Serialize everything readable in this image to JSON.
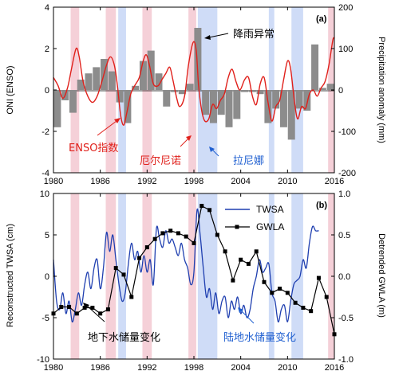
{
  "colors": {
    "el_nino_band": "#f5d0d8",
    "la_nina_band": "#cfdcf7",
    "oni": "#e0201b",
    "precip_bar": "#8c8c8c",
    "twsa": "#1f3fb0",
    "gwla": "#000000",
    "ann_red": "#e0201b",
    "ann_blue": "#1f5fd0"
  },
  "chart_data": [
    {
      "type": "bar",
      "panel_label": "(a)",
      "x_range": [
        1980,
        2016
      ],
      "x_ticks": [
        "1980",
        "1986",
        "1992",
        "1998",
        "2004",
        "2010",
        "2016"
      ],
      "ylabel": "ONI (ENSO)",
      "ylim": [
        -4,
        4
      ],
      "y_ticks": [
        "-4",
        "-2",
        "0",
        "2",
        "4"
      ],
      "y2label": "Precipitation anomaly (mm)",
      "y2lim": [
        -200,
        200
      ],
      "y2_ticks": [
        "-200",
        "-100",
        "0",
        "100",
        "200"
      ],
      "el_nino_periods": [
        [
          1982.2,
          1983.3
        ],
        [
          1986.7,
          1988.0
        ],
        [
          1991.4,
          1992.6
        ],
        [
          1997.3,
          1998.3
        ],
        [
          2015.2,
          2016.2
        ]
      ],
      "la_nina_periods": [
        [
          1988.3,
          1989.3
        ],
        [
          1998.5,
          2001.0
        ],
        [
          2007.6,
          2008.3
        ],
        [
          2010.5,
          2012.0
        ]
      ],
      "series": [
        {
          "kind": "bar",
          "axis": "right",
          "x": [
            1980,
            1981,
            1982,
            1983,
            1984,
            1985,
            1986,
            1987,
            1988,
            1989,
            1990,
            1991,
            1992,
            1993,
            1994,
            1995,
            1996,
            1997,
            1998,
            1999,
            2000,
            2001,
            2002,
            2003,
            2004,
            2005,
            2006,
            2007,
            2008,
            2009,
            2010,
            2011,
            2012,
            2013,
            2014,
            2015
          ],
          "values": [
            -90,
            -25,
            -55,
            25,
            40,
            55,
            75,
            45,
            -30,
            -80,
            10,
            70,
            95,
            40,
            -40,
            -5,
            -10,
            15,
            150,
            -60,
            -80,
            -60,
            -90,
            -70,
            -5,
            -5,
            -10,
            -80,
            -45,
            -90,
            -120,
            -45,
            -50,
            110,
            5,
            15
          ]
        },
        {
          "kind": "line",
          "axis": "left",
          "x": [
            1980.0,
            1980.6,
            1981.2,
            1981.8,
            1982.3,
            1982.9,
            1983.3,
            1983.8,
            1984.4,
            1985.0,
            1985.6,
            1986.2,
            1986.8,
            1987.3,
            1987.8,
            1988.2,
            1988.6,
            1989.0,
            1989.4,
            1989.9,
            1990.4,
            1991.0,
            1991.5,
            1991.9,
            1992.3,
            1992.8,
            1993.4,
            1993.9,
            1994.4,
            1994.9,
            1995.3,
            1995.8,
            1996.2,
            1996.8,
            1997.3,
            1997.9,
            1998.3,
            1998.6,
            1999.0,
            1999.4,
            1999.9,
            2000.4,
            2000.9,
            2001.4,
            2001.9,
            2002.4,
            2002.9,
            2003.4,
            2003.9,
            2004.5,
            2005.0,
            2005.5,
            2006.0,
            2006.5,
            2007.0,
            2007.5,
            2008.0,
            2008.5,
            2009.0,
            2009.5,
            2010.0,
            2010.4,
            2010.9,
            2011.3,
            2011.8,
            2012.3,
            2012.8,
            2013.3,
            2013.8,
            2014.3,
            2014.8,
            2015.3,
            2015.8,
            2016.0
          ],
          "values": [
            0.6,
            0.2,
            -0.4,
            0.1,
            1.0,
            2.0,
            1.6,
            0.4,
            -0.3,
            -0.6,
            -0.3,
            0.4,
            1.2,
            1.6,
            1.2,
            0.2,
            -1.2,
            -1.7,
            -1.1,
            -0.2,
            0.2,
            0.6,
            1.4,
            1.7,
            1.2,
            0.3,
            0.2,
            0.5,
            0.8,
            1.1,
            0.5,
            -0.4,
            -0.8,
            -0.3,
            1.2,
            2.3,
            1.9,
            0.2,
            -1.0,
            -1.5,
            -1.4,
            -0.7,
            -0.9,
            -0.5,
            -0.2,
            0.6,
            1.0,
            0.4,
            0.0,
            0.5,
            0.6,
            -0.3,
            -0.7,
            0.3,
            0.6,
            -0.6,
            -1.5,
            -0.8,
            -0.5,
            0.5,
            1.4,
            1.0,
            -0.6,
            -1.4,
            -0.8,
            -0.9,
            -0.2,
            0.0,
            -0.3,
            0.1,
            0.4,
            1.2,
            2.4,
            2.5
          ]
        }
      ],
      "annotations": {
        "precip": "降雨异常",
        "enso": "ENSO指数",
        "el_nino": "厄尔尼诺",
        "la_nina": "拉尼娜"
      }
    },
    {
      "type": "line",
      "panel_label": "(b)",
      "x_range": [
        1980,
        2016
      ],
      "x_ticks": [
        "1980",
        "1986",
        "1992",
        "1998",
        "2004",
        "2010",
        "2016"
      ],
      "ylabel": "Reconstructed TWSA (cm)",
      "ylim": [
        -10,
        10
      ],
      "y_ticks": [
        "-10",
        "-5",
        "0",
        "5",
        "10"
      ],
      "y2label": "Detrended GWLA (m)",
      "y2lim": [
        -1.0,
        1.0
      ],
      "y2_ticks": [
        "-1.0",
        "-0.5",
        "0.0",
        "0.5",
        "1.0"
      ],
      "el_nino_periods": [
        [
          1982.2,
          1983.3
        ],
        [
          1986.7,
          1988.0
        ],
        [
          1991.4,
          1992.6
        ],
        [
          1997.3,
          1998.3
        ],
        [
          2015.2,
          2016.2
        ]
      ],
      "la_nina_periods": [
        [
          1988.3,
          1989.3
        ],
        [
          1998.5,
          2001.0
        ],
        [
          2007.6,
          2008.3
        ],
        [
          2010.5,
          2012.0
        ]
      ],
      "series": [
        {
          "name": "TWSA",
          "axis": "left",
          "x": [
            1980.0,
            1980.4,
            1980.8,
            1981.2,
            1981.6,
            1982.0,
            1982.4,
            1982.8,
            1983.2,
            1983.6,
            1984.0,
            1984.4,
            1984.8,
            1985.2,
            1985.6,
            1986.0,
            1986.4,
            1986.8,
            1987.2,
            1987.6,
            1988.0,
            1988.4,
            1988.8,
            1989.2,
            1989.6,
            1990.0,
            1990.4,
            1990.8,
            1991.2,
            1991.6,
            1992.0,
            1992.4,
            1992.8,
            1993.2,
            1993.6,
            1994.0,
            1994.4,
            1994.8,
            1995.2,
            1995.6,
            1996.0,
            1996.4,
            1996.8,
            1997.2,
            1997.6,
            1998.0,
            1998.4,
            1998.8,
            1999.2,
            1999.6,
            2000.0,
            2000.4,
            2000.8,
            2001.2,
            2001.6,
            2002.0,
            2002.4,
            2002.8,
            2003.2,
            2003.6,
            2004.0,
            2004.4,
            2004.8,
            2005.2,
            2005.6,
            2006.0,
            2006.4,
            2006.8,
            2007.2,
            2007.6,
            2008.0,
            2008.4,
            2008.8,
            2009.2,
            2009.6,
            2010.0,
            2010.4,
            2010.8,
            2011.2,
            2011.6,
            2012.0,
            2012.4,
            2012.8,
            2013.2,
            2013.6,
            2014.0
          ],
          "values": [
            2,
            -3,
            -4,
            -2,
            -4.5,
            -3,
            -5.5,
            -4,
            -2,
            -3.5,
            -1,
            0.5,
            -1.5,
            1,
            2,
            -1.5,
            1,
            5.3,
            3,
            5,
            2,
            -1,
            -3,
            -2,
            1.5,
            4,
            2,
            3,
            0.5,
            2.5,
            0.5,
            2,
            -1,
            5.8,
            4.5,
            3.5,
            5.5,
            4,
            4.5,
            3.5,
            2.5,
            4,
            2,
            1,
            -1,
            0.5,
            8,
            5,
            1,
            -2.5,
            -1.5,
            -4,
            -2,
            -4.5,
            -3,
            -2.5,
            -5,
            -3,
            -4,
            -2.5,
            -4.5,
            -3.5,
            -5,
            -4,
            -1.5,
            0,
            2,
            0.5,
            1,
            1.5,
            -2,
            -3,
            -5.5,
            -4,
            -3.5,
            -5.5,
            -3,
            -1,
            -0.5,
            0,
            2,
            1,
            4,
            6,
            5.5,
            5.5
          ]
        },
        {
          "name": "GWLA",
          "axis": "right",
          "x": [
            1980.0,
            1981.0,
            1982.0,
            1983.0,
            1984.0,
            1985.0,
            1986.0,
            1987.0,
            1988.0,
            1989.0,
            1990.0,
            1991.0,
            1992.0,
            1993.0,
            1994.0,
            1995.0,
            1996.0,
            1997.0,
            1998.0,
            1999.0,
            2000.0,
            2001.0,
            2002.0,
            2003.0,
            2004.0,
            2005.0,
            2006.0,
            2007.0,
            2008.0,
            2009.0,
            2010.0,
            2011.0,
            2012.0,
            2013.0,
            2014.0,
            2015.0,
            2016.0
          ],
          "values": [
            -0.45,
            -0.37,
            -0.37,
            -0.45,
            -0.38,
            -0.38,
            -0.45,
            -0.4,
            0.1,
            0.02,
            -0.25,
            0.22,
            0.35,
            0.45,
            0.52,
            0.55,
            0.52,
            0.48,
            0.4,
            0.85,
            0.8,
            0.5,
            0.3,
            -0.05,
            0.2,
            0.15,
            0.3,
            -0.07,
            -0.2,
            -0.15,
            -0.2,
            -0.32,
            -0.38,
            -0.42,
            -0.02,
            -0.25,
            -0.7
          ]
        }
      ],
      "legend": [
        {
          "label": "TWSA",
          "series": "TWSA"
        },
        {
          "label": "GWLA",
          "series": "GWLA"
        }
      ],
      "legend_position": "top-right",
      "annotations": {
        "groundwater": "地下水储量变化",
        "terrestrial": "陆地水储量变化"
      }
    }
  ]
}
